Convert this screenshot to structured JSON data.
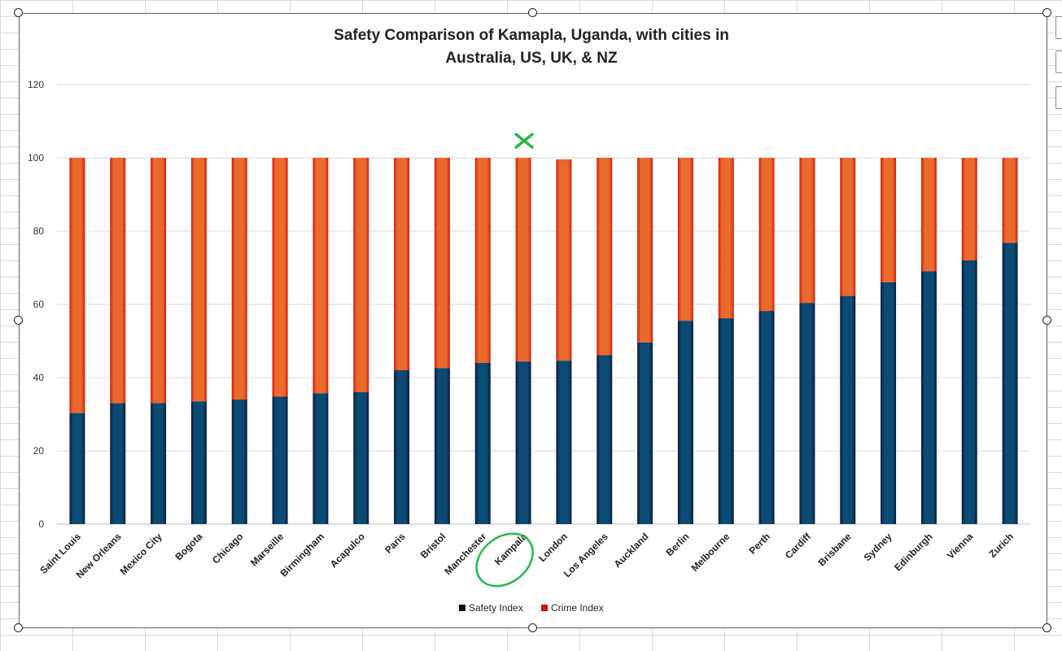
{
  "chart_data": {
    "type": "bar",
    "stacked": true,
    "title_lines": [
      "Safety Comparison of Kamapla, Uganda, with cities in",
      "Australia, US, UK, & NZ"
    ],
    "categories": [
      "Saint Louis",
      "New Orleans",
      "Mexico City",
      "Bogota",
      "Chicago",
      "Marseille",
      "Birmingham",
      "Acapulco",
      "Paris",
      "Bristol",
      "Manchester",
      "Kampala",
      "London",
      "Los Angeles",
      "Auckland",
      "Berlin",
      "Melbourne",
      "Perth",
      "Cardiff",
      "Brisbane",
      "Sydney",
      "Edinburgh",
      "Vienna",
      "Zurich"
    ],
    "series": [
      {
        "name": "Safety Index",
        "color": "#0b4a73",
        "values": [
          30.3,
          33.0,
          33.0,
          33.5,
          34.0,
          34.8,
          35.7,
          36.0,
          42.0,
          42.6,
          44.0,
          44.4,
          44.6,
          46.1,
          49.6,
          55.5,
          56.2,
          58.2,
          60.4,
          62.3,
          66.0,
          69.0,
          72.0,
          76.8
        ]
      },
      {
        "name": "Crime Index",
        "color": "#e96a2d",
        "values": [
          69.7,
          67.0,
          67.0,
          66.5,
          66.0,
          65.2,
          64.3,
          64.0,
          58.0,
          57.4,
          56.0,
          55.6,
          55.0,
          53.9,
          50.4,
          44.5,
          43.8,
          41.8,
          39.6,
          37.7,
          34.0,
          31.0,
          28.0,
          23.2
        ]
      }
    ],
    "legend": [
      {
        "label": "Safety Index",
        "swatch": "#111111"
      },
      {
        "label": "Crime Index",
        "swatch": "#d01010"
      }
    ],
    "y_ticks": [
      0,
      20,
      40,
      60,
      80,
      100,
      120
    ],
    "ylim": [
      0,
      120
    ],
    "grid": true,
    "legend_position": "bottom",
    "annotations": {
      "marked_category": "Kampala",
      "marker_color": "#22bb44"
    }
  }
}
